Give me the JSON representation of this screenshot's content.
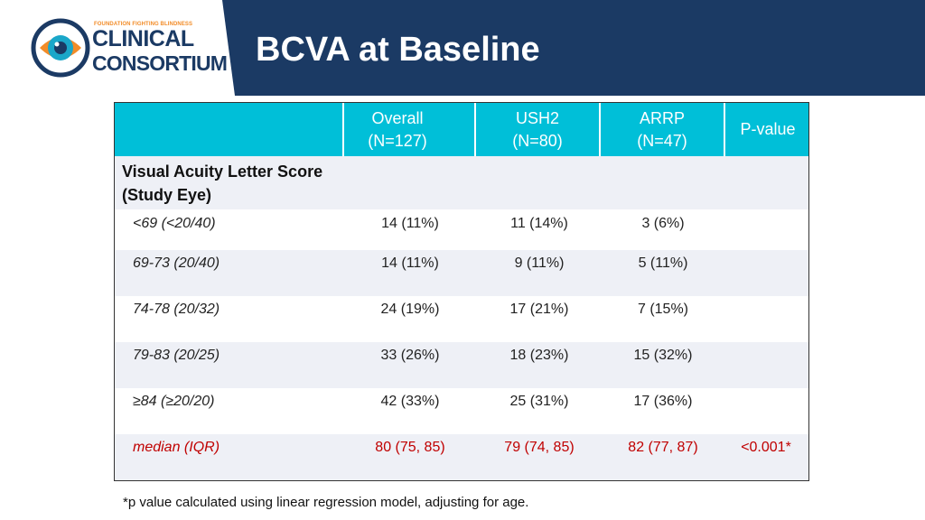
{
  "header": {
    "logo_small_text": "FOUNDATION FIGHTING BLINDNESS",
    "logo_line1": "CLINICAL",
    "logo_line2": "CONSORTIUM",
    "title": "BCVA at Baseline"
  },
  "colors": {
    "header_bg": "#1b3a64",
    "table_header_bg": "#00bfd8",
    "stripe_bg": "#eef0f6",
    "highlight_red": "#c00000",
    "logo_orange": "#f28c28",
    "logo_cyan": "#1aa7c9"
  },
  "table": {
    "columns": [
      {
        "label": "Overall",
        "n": "(N=127)"
      },
      {
        "label": "USH2",
        "n": "(N=80)"
      },
      {
        "label": "ARRP",
        "n": "(N=47)"
      },
      {
        "label": "P-value",
        "n": ""
      }
    ],
    "section_label": "Visual Acuity Letter Score (Study Eye)",
    "rows": [
      {
        "label": "<69 (<20/40)",
        "overall": "14 (11%)",
        "ush2": "11 (14%)",
        "arrp": "3 (6%)",
        "p": ""
      },
      {
        "label": "69-73 (20/40)",
        "overall": "14 (11%)",
        "ush2": "9 (11%)",
        "arrp": "5 (11%)",
        "p": ""
      },
      {
        "label": "74-78 (20/32)",
        "overall": "24 (19%)",
        "ush2": "17 (21%)",
        "arrp": "7 (15%)",
        "p": ""
      },
      {
        "label": "79-83 (20/25)",
        "overall": "33 (26%)",
        "ush2": "18 (23%)",
        "arrp": "15 (32%)",
        "p": ""
      },
      {
        "label": "≥84 (≥20/20)",
        "overall": "42 (33%)",
        "ush2": "25 (31%)",
        "arrp": "17 (36%)",
        "p": ""
      },
      {
        "label": "median (IQR)",
        "overall": "80 (75, 85)",
        "ush2": "79 (74, 85)",
        "arrp": "82 (77, 87)",
        "p": "<0.001*"
      }
    ]
  },
  "footnote": "*p value calculated using linear regression model, adjusting for age."
}
